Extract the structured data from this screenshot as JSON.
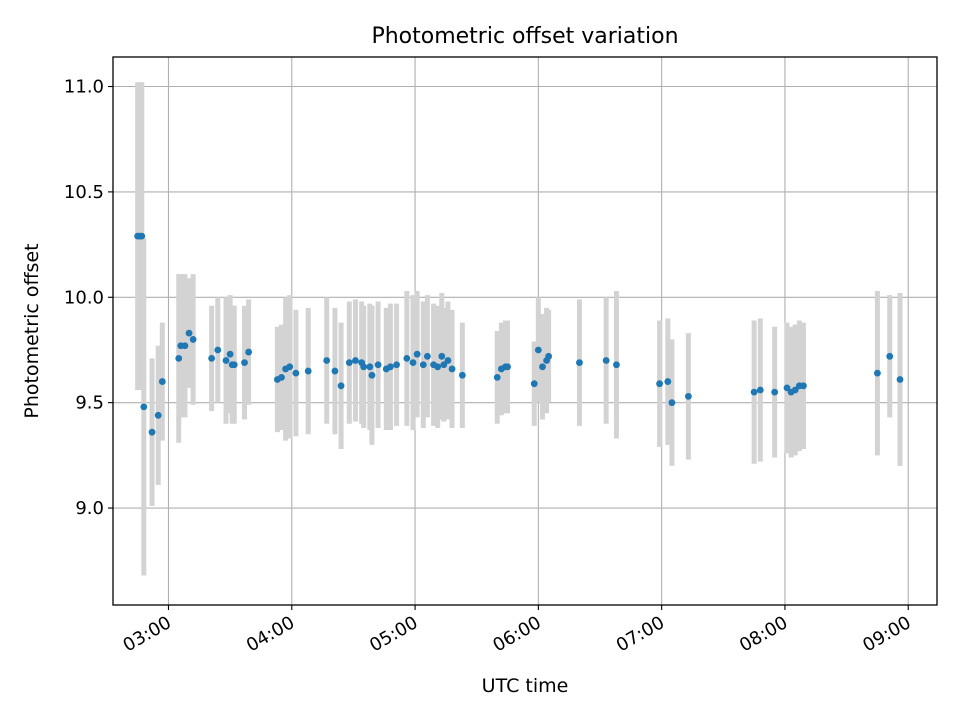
{
  "chart_data": {
    "type": "scatter",
    "title": "Photometric offset variation",
    "xlabel": "UTC time",
    "ylabel": "Photometric offset",
    "x_ticks": [
      "03:00",
      "04:00",
      "05:00",
      "06:00",
      "07:00",
      "08:00",
      "09:00"
    ],
    "y_ticks": [
      "9.0",
      "9.5",
      "10.0",
      "10.5",
      "11.0"
    ],
    "xlim": [
      "02:33",
      "09:14"
    ],
    "ylim": [
      8.54,
      11.14
    ],
    "grid": true,
    "colors": {
      "points": "#1f77b4",
      "error_bars": "#d3d3d3",
      "grid": "#b0b0b0"
    },
    "series": [
      {
        "time": [
          "02:45",
          "02:46",
          "02:47",
          "02:48",
          "02:52",
          "02:55",
          "02:57",
          "03:05",
          "03:06",
          "03:08",
          "03:10",
          "03:12",
          "03:21",
          "03:24",
          "03:28",
          "03:30",
          "03:31",
          "03:32",
          "03:37",
          "03:39",
          "03:53",
          "03:55",
          "03:57",
          "03:59",
          "04:02",
          "04:08",
          "04:17",
          "04:21",
          "04:24",
          "04:28",
          "04:31",
          "04:34",
          "04:35",
          "04:38",
          "04:39",
          "04:42",
          "04:46",
          "04:48",
          "04:51",
          "04:56",
          "04:59",
          "05:01",
          "05:04",
          "05:06",
          "05:09",
          "05:11",
          "05:13",
          "05:14",
          "05:16",
          "05:18",
          "05:23",
          "05:40",
          "05:42",
          "05:44",
          "05:45",
          "05:58",
          "06:00",
          "06:02",
          "06:04",
          "06:05",
          "06:20",
          "06:33",
          "06:38",
          "06:59",
          "07:03",
          "07:05",
          "07:13",
          "07:45",
          "07:48",
          "07:55",
          "08:01",
          "08:03",
          "08:05",
          "08:07",
          "08:09",
          "08:45",
          "08:51",
          "08:56"
        ],
        "y": [
          10.29,
          10.29,
          10.29,
          9.48,
          9.36,
          9.44,
          9.6,
          9.71,
          9.77,
          9.77,
          9.83,
          9.8,
          9.71,
          9.75,
          9.7,
          9.73,
          9.68,
          9.68,
          9.69,
          9.74,
          9.61,
          9.62,
          9.66,
          9.67,
          9.64,
          9.65,
          9.7,
          9.65,
          9.58,
          9.69,
          9.7,
          9.69,
          9.67,
          9.67,
          9.63,
          9.68,
          9.66,
          9.67,
          9.68,
          9.71,
          9.69,
          9.73,
          9.68,
          9.72,
          9.68,
          9.67,
          9.72,
          9.68,
          9.7,
          9.66,
          9.63,
          9.62,
          9.66,
          9.67,
          9.67,
          9.59,
          9.75,
          9.67,
          9.7,
          9.72,
          9.69,
          9.7,
          9.68,
          9.59,
          9.6,
          9.5,
          9.53,
          9.55,
          9.56,
          9.55,
          9.57,
          9.55,
          9.56,
          9.58,
          9.58,
          9.64,
          9.72,
          9.61
        ],
        "error": [
          0.73,
          0.73,
          0.73,
          0.8,
          0.35,
          0.33,
          0.28,
          0.4,
          0.34,
          0.34,
          0.26,
          0.31,
          0.25,
          0.25,
          0.3,
          0.28,
          0.28,
          0.28,
          0.27,
          0.25,
          0.25,
          0.25,
          0.34,
          0.34,
          0.3,
          0.3,
          0.3,
          0.3,
          0.3,
          0.29,
          0.29,
          0.29,
          0.29,
          0.3,
          0.33,
          0.3,
          0.29,
          0.3,
          0.29,
          0.32,
          0.32,
          0.3,
          0.3,
          0.29,
          0.29,
          0.29,
          0.3,
          0.27,
          0.28,
          0.28,
          0.25,
          0.22,
          0.22,
          0.22,
          0.22,
          0.2,
          0.25,
          0.25,
          0.25,
          0.22,
          0.3,
          0.3,
          0.35,
          0.3,
          0.3,
          0.3,
          0.3,
          0.34,
          0.34,
          0.31,
          0.31,
          0.31,
          0.31,
          0.31,
          0.3,
          0.39,
          0.29,
          0.41
        ]
      }
    ]
  }
}
